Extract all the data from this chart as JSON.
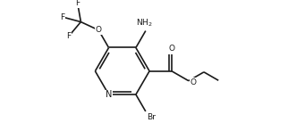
{
  "bg_color": "#ffffff",
  "line_color": "#1a1a1a",
  "line_width": 1.2,
  "font_size": 6.5,
  "fig_width": 3.22,
  "fig_height": 1.38,
  "dpi": 100,
  "xlim": [
    0,
    10
  ],
  "ylim": [
    0,
    4.3
  ]
}
